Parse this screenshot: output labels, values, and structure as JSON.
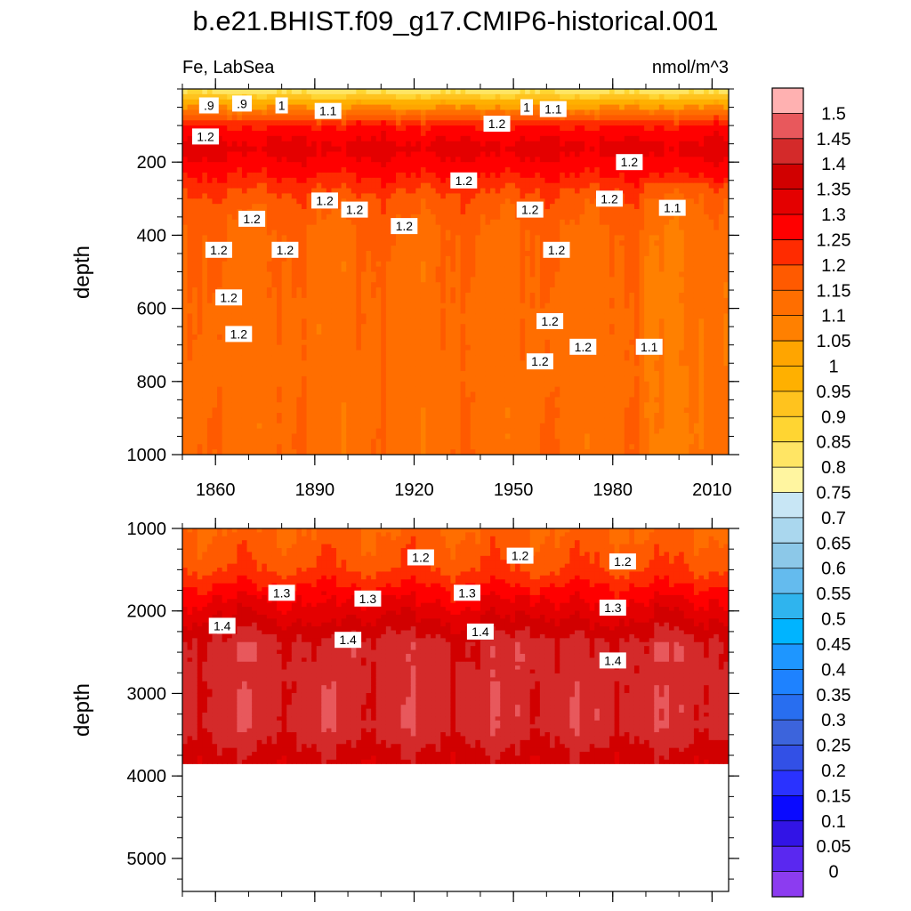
{
  "chart_data": {
    "type": "heatmap",
    "title": "b.e21.BHIST.f09_g17.CMIP6-historical.001",
    "subtitle_left": "Fe, LabSea",
    "subtitle_right": "nmol/m^3",
    "x_tick_labels": [
      "1860",
      "1890",
      "1920",
      "1950",
      "1980",
      "2010"
    ],
    "x_ticks": [
      1860,
      1890,
      1920,
      1950,
      1980,
      2010
    ],
    "xlim": [
      1850,
      2015
    ],
    "panels": [
      {
        "name": "upper",
        "ylabel": "depth",
        "ylim": [
          0,
          1000
        ],
        "y_ticks": [
          200,
          400,
          600,
          800,
          1000
        ],
        "y_tick_labels": [
          "200",
          "400",
          "600",
          "800",
          "1000"
        ],
        "depth_profile": [
          [
            0,
            0.8
          ],
          [
            30,
            0.95
          ],
          [
            60,
            1.1
          ],
          [
            100,
            1.25
          ],
          [
            160,
            1.32
          ],
          [
            220,
            1.27
          ],
          [
            300,
            1.18
          ],
          [
            400,
            1.14
          ],
          [
            600,
            1.13
          ],
          [
            1000,
            1.13
          ]
        ],
        "contour_labels": [
          {
            "text": ".9",
            "x": 1858,
            "y": 45
          },
          {
            "text": ".9",
            "x": 1868,
            "y": 40
          },
          {
            "text": "1",
            "x": 1880,
            "y": 45
          },
          {
            "text": "1.1",
            "x": 1894,
            "y": 60
          },
          {
            "text": "1",
            "x": 1954,
            "y": 50
          },
          {
            "text": "1.1",
            "x": 1962,
            "y": 55
          },
          {
            "text": "1.2",
            "x": 1857,
            "y": 130
          },
          {
            "text": "1.2",
            "x": 1945,
            "y": 95
          },
          {
            "text": "1.2",
            "x": 1985,
            "y": 200
          },
          {
            "text": "1.2",
            "x": 1935,
            "y": 250
          },
          {
            "text": "1.2",
            "x": 1893,
            "y": 305
          },
          {
            "text": "1.2",
            "x": 1902,
            "y": 330
          },
          {
            "text": "1.2",
            "x": 1871,
            "y": 355
          },
          {
            "text": "1.2",
            "x": 1917,
            "y": 375
          },
          {
            "text": "1.2",
            "x": 1955,
            "y": 330
          },
          {
            "text": "1.2",
            "x": 1979,
            "y": 300
          },
          {
            "text": "1.1",
            "x": 1998,
            "y": 325
          },
          {
            "text": "1.2",
            "x": 1861,
            "y": 440
          },
          {
            "text": "1.2",
            "x": 1881,
            "y": 440
          },
          {
            "text": "1.2",
            "x": 1963,
            "y": 440
          },
          {
            "text": "1.2",
            "x": 1864,
            "y": 570
          },
          {
            "text": "1.2",
            "x": 1867,
            "y": 670
          },
          {
            "text": "1.2",
            "x": 1961,
            "y": 635
          },
          {
            "text": "1.2",
            "x": 1971,
            "y": 705
          },
          {
            "text": "1.1",
            "x": 1991,
            "y": 705
          },
          {
            "text": "1.2",
            "x": 1958,
            "y": 745
          }
        ]
      },
      {
        "name": "lower",
        "ylabel": "depth",
        "ylim": [
          1000,
          5400
        ],
        "y_ticks": [
          1000,
          2000,
          3000,
          4000,
          5000
        ],
        "y_tick_labels": [
          "1000",
          "2000",
          "3000",
          "4000",
          "5000"
        ],
        "bottom_depth": 3850,
        "depth_profile": [
          [
            1000,
            1.15
          ],
          [
            1500,
            1.2
          ],
          [
            1800,
            1.28
          ],
          [
            2100,
            1.35
          ],
          [
            2400,
            1.42
          ],
          [
            3400,
            1.43
          ],
          [
            3850,
            1.37
          ]
        ],
        "contour_labels": [
          {
            "text": "1.2",
            "x": 1922,
            "y": 1350
          },
          {
            "text": "1.2",
            "x": 1952,
            "y": 1330
          },
          {
            "text": "1.2",
            "x": 1983,
            "y": 1400
          },
          {
            "text": "1.3",
            "x": 1880,
            "y": 1780
          },
          {
            "text": "1.3",
            "x": 1906,
            "y": 1850
          },
          {
            "text": "1.3",
            "x": 1936,
            "y": 1780
          },
          {
            "text": "1.3",
            "x": 1980,
            "y": 1960
          },
          {
            "text": "1.4",
            "x": 1862,
            "y": 2180
          },
          {
            "text": "1.4",
            "x": 1900,
            "y": 2350
          },
          {
            "text": "1.4",
            "x": 1940,
            "y": 2250
          },
          {
            "text": "1.4",
            "x": 1980,
            "y": 2600
          }
        ]
      }
    ],
    "colorbar": {
      "labels": [
        "1.5",
        "1.45",
        "1.4",
        "1.35",
        "1.3",
        "1.25",
        "1.2",
        "1.15",
        "1.1",
        "1.05",
        "1",
        "0.95",
        "0.9",
        "0.85",
        "0.8",
        "0.75",
        "0.7",
        "0.65",
        "0.6",
        "0.55",
        "0.5",
        "0.45",
        "0.4",
        "0.35",
        "0.3",
        "0.25",
        "0.2",
        "0.15",
        "0.1",
        "0.05",
        "0"
      ],
      "colors": [
        "#ffb1b1",
        "#e8585c",
        "#d42a2a",
        "#d10000",
        "#e40000",
        "#ff0000",
        "#ff2b00",
        "#ff5a00",
        "#ff6e00",
        "#ff8000",
        "#ffa500",
        "#ffb000",
        "#ffc31e",
        "#ffd532",
        "#ffe564",
        "#fff5a0",
        "#c8e6f5",
        "#aad7ee",
        "#8cc8e8",
        "#64bbee",
        "#2fb4ee",
        "#00b4ff",
        "#1e96ff",
        "#1e82ff",
        "#286ef0",
        "#3c64dc",
        "#3250e6",
        "#2a32ff",
        "#0a0aff",
        "#3214e6",
        "#5a28f0",
        "#8c3cf0"
      ]
    }
  }
}
